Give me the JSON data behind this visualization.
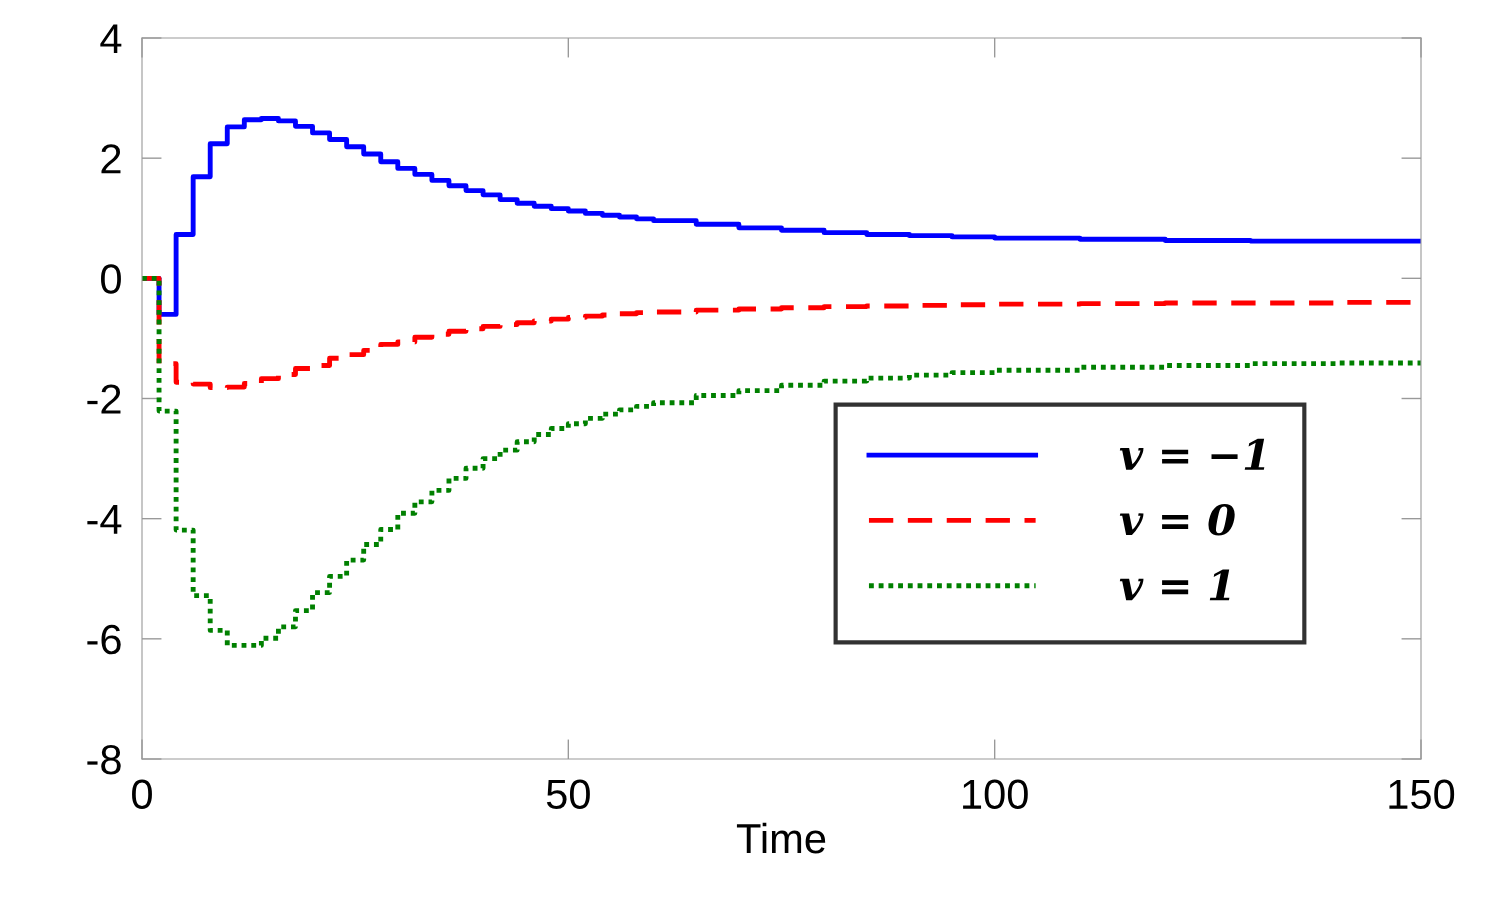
{
  "chart_data": {
    "type": "step",
    "xlabel": "Time",
    "x": [
      0,
      2,
      4,
      6,
      8,
      10,
      12,
      14,
      16,
      18,
      20,
      22,
      24,
      26,
      28,
      30,
      32,
      34,
      36,
      38,
      40,
      42,
      44,
      46,
      48,
      50,
      52,
      54,
      56,
      58,
      60,
      65,
      70,
      75,
      80,
      85,
      90,
      95,
      100,
      110,
      120,
      130,
      140,
      150
    ],
    "series": [
      {
        "name": "v = −1",
        "color": "#0000ff",
        "line_style": "solid",
        "values": [
          0,
          -0.6,
          0.73,
          1.69,
          2.24,
          2.52,
          2.64,
          2.66,
          2.62,
          2.53,
          2.42,
          2.31,
          2.19,
          2.07,
          1.94,
          1.83,
          1.73,
          1.63,
          1.54,
          1.46,
          1.39,
          1.31,
          1.25,
          1.2,
          1.16,
          1.12,
          1.08,
          1.05,
          1.02,
          0.99,
          0.96,
          0.9,
          0.84,
          0.8,
          0.76,
          0.73,
          0.71,
          0.69,
          0.67,
          0.65,
          0.63,
          0.62,
          0.62,
          0.62
        ]
      },
      {
        "name": "v = 0",
        "color": "#ff0000",
        "line_style": "dashed",
        "values": [
          0,
          -1.42,
          -1.73,
          -1.76,
          -1.82,
          -1.81,
          -1.75,
          -1.67,
          -1.6,
          -1.5,
          -1.45,
          -1.33,
          -1.27,
          -1.2,
          -1.1,
          -1.06,
          -0.98,
          -0.93,
          -0.88,
          -0.84,
          -0.8,
          -0.77,
          -0.74,
          -0.71,
          -0.68,
          -0.65,
          -0.63,
          -0.61,
          -0.59,
          -0.57,
          -0.56,
          -0.53,
          -0.51,
          -0.49,
          -0.47,
          -0.46,
          -0.45,
          -0.44,
          -0.43,
          -0.42,
          -0.41,
          -0.41,
          -0.4,
          -0.4
        ]
      },
      {
        "name": "v = 1",
        "color": "#008000",
        "line_style": "dotted",
        "values": [
          0,
          -2.21,
          -4.19,
          -5.28,
          -5.86,
          -6.11,
          -6.11,
          -5.99,
          -5.8,
          -5.53,
          -5.23,
          -4.96,
          -4.69,
          -4.43,
          -4.18,
          -3.91,
          -3.72,
          -3.53,
          -3.33,
          -3.16,
          -3.0,
          -2.86,
          -2.72,
          -2.6,
          -2.5,
          -2.42,
          -2.33,
          -2.26,
          -2.19,
          -2.13,
          -2.07,
          -1.95,
          -1.87,
          -1.78,
          -1.71,
          -1.66,
          -1.61,
          -1.57,
          -1.53,
          -1.48,
          -1.45,
          -1.42,
          -1.41,
          -1.4
        ]
      }
    ],
    "xlim": [
      0,
      150
    ],
    "xticks": [
      0,
      50,
      100,
      150
    ],
    "ylim": [
      -8,
      4
    ],
    "yticks": [
      {
        "value": -8,
        "label": "-8"
      },
      {
        "value": -6,
        "label": "-6"
      },
      {
        "value": -4,
        "label": "-4"
      },
      {
        "value": -2,
        "label": "-2"
      },
      0,
      2,
      4
    ],
    "grid": false,
    "legend": "bottom right"
  }
}
